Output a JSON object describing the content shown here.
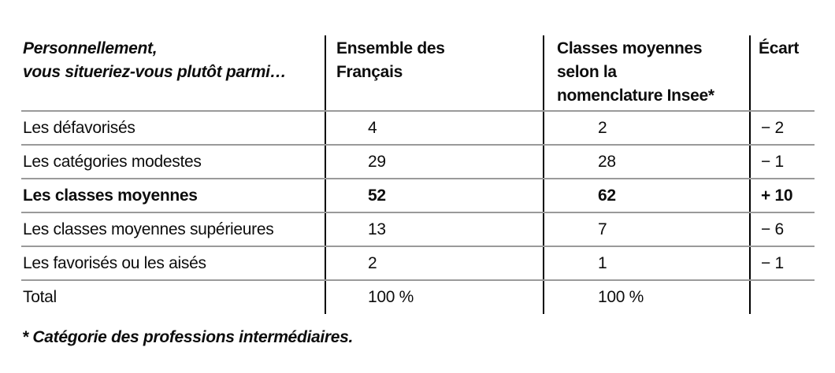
{
  "table": {
    "header": {
      "question_line1": "Personnellement,",
      "question_line2": "vous situeriez-vous plutôt parmi…",
      "col_ensemble": "Ensemble des Français",
      "col_insee": "Classes moyennes selon la nomenclature Insee*",
      "col_ecart": "Écart"
    },
    "rows": [
      {
        "label": "Les défavorisés",
        "ensemble": "4",
        "insee": "2",
        "ecart": "− 2"
      },
      {
        "label": "Les catégories modestes",
        "ensemble": "29",
        "insee": "28",
        "ecart": "− 1"
      },
      {
        "label": "Les classes moyennes",
        "ensemble": "52",
        "insee": "62",
        "ecart": "+ 10"
      },
      {
        "label": "Les classes moyennes supérieures",
        "ensemble": "13",
        "insee": "7",
        "ecart": "− 6"
      },
      {
        "label": "Les favorisés ou les aisés",
        "ensemble": "2",
        "insee": "1",
        "ecart": "− 1"
      },
      {
        "label": "Total",
        "ensemble": "100 %",
        "insee": "100 %",
        "ecart": ""
      }
    ]
  },
  "footnote": "* Catégorie des professions intermédiaires.",
  "colors": {
    "horizontal_rule": "#9a9a9a",
    "vertical_rule": "#000000",
    "text": "#0d0d0d"
  }
}
